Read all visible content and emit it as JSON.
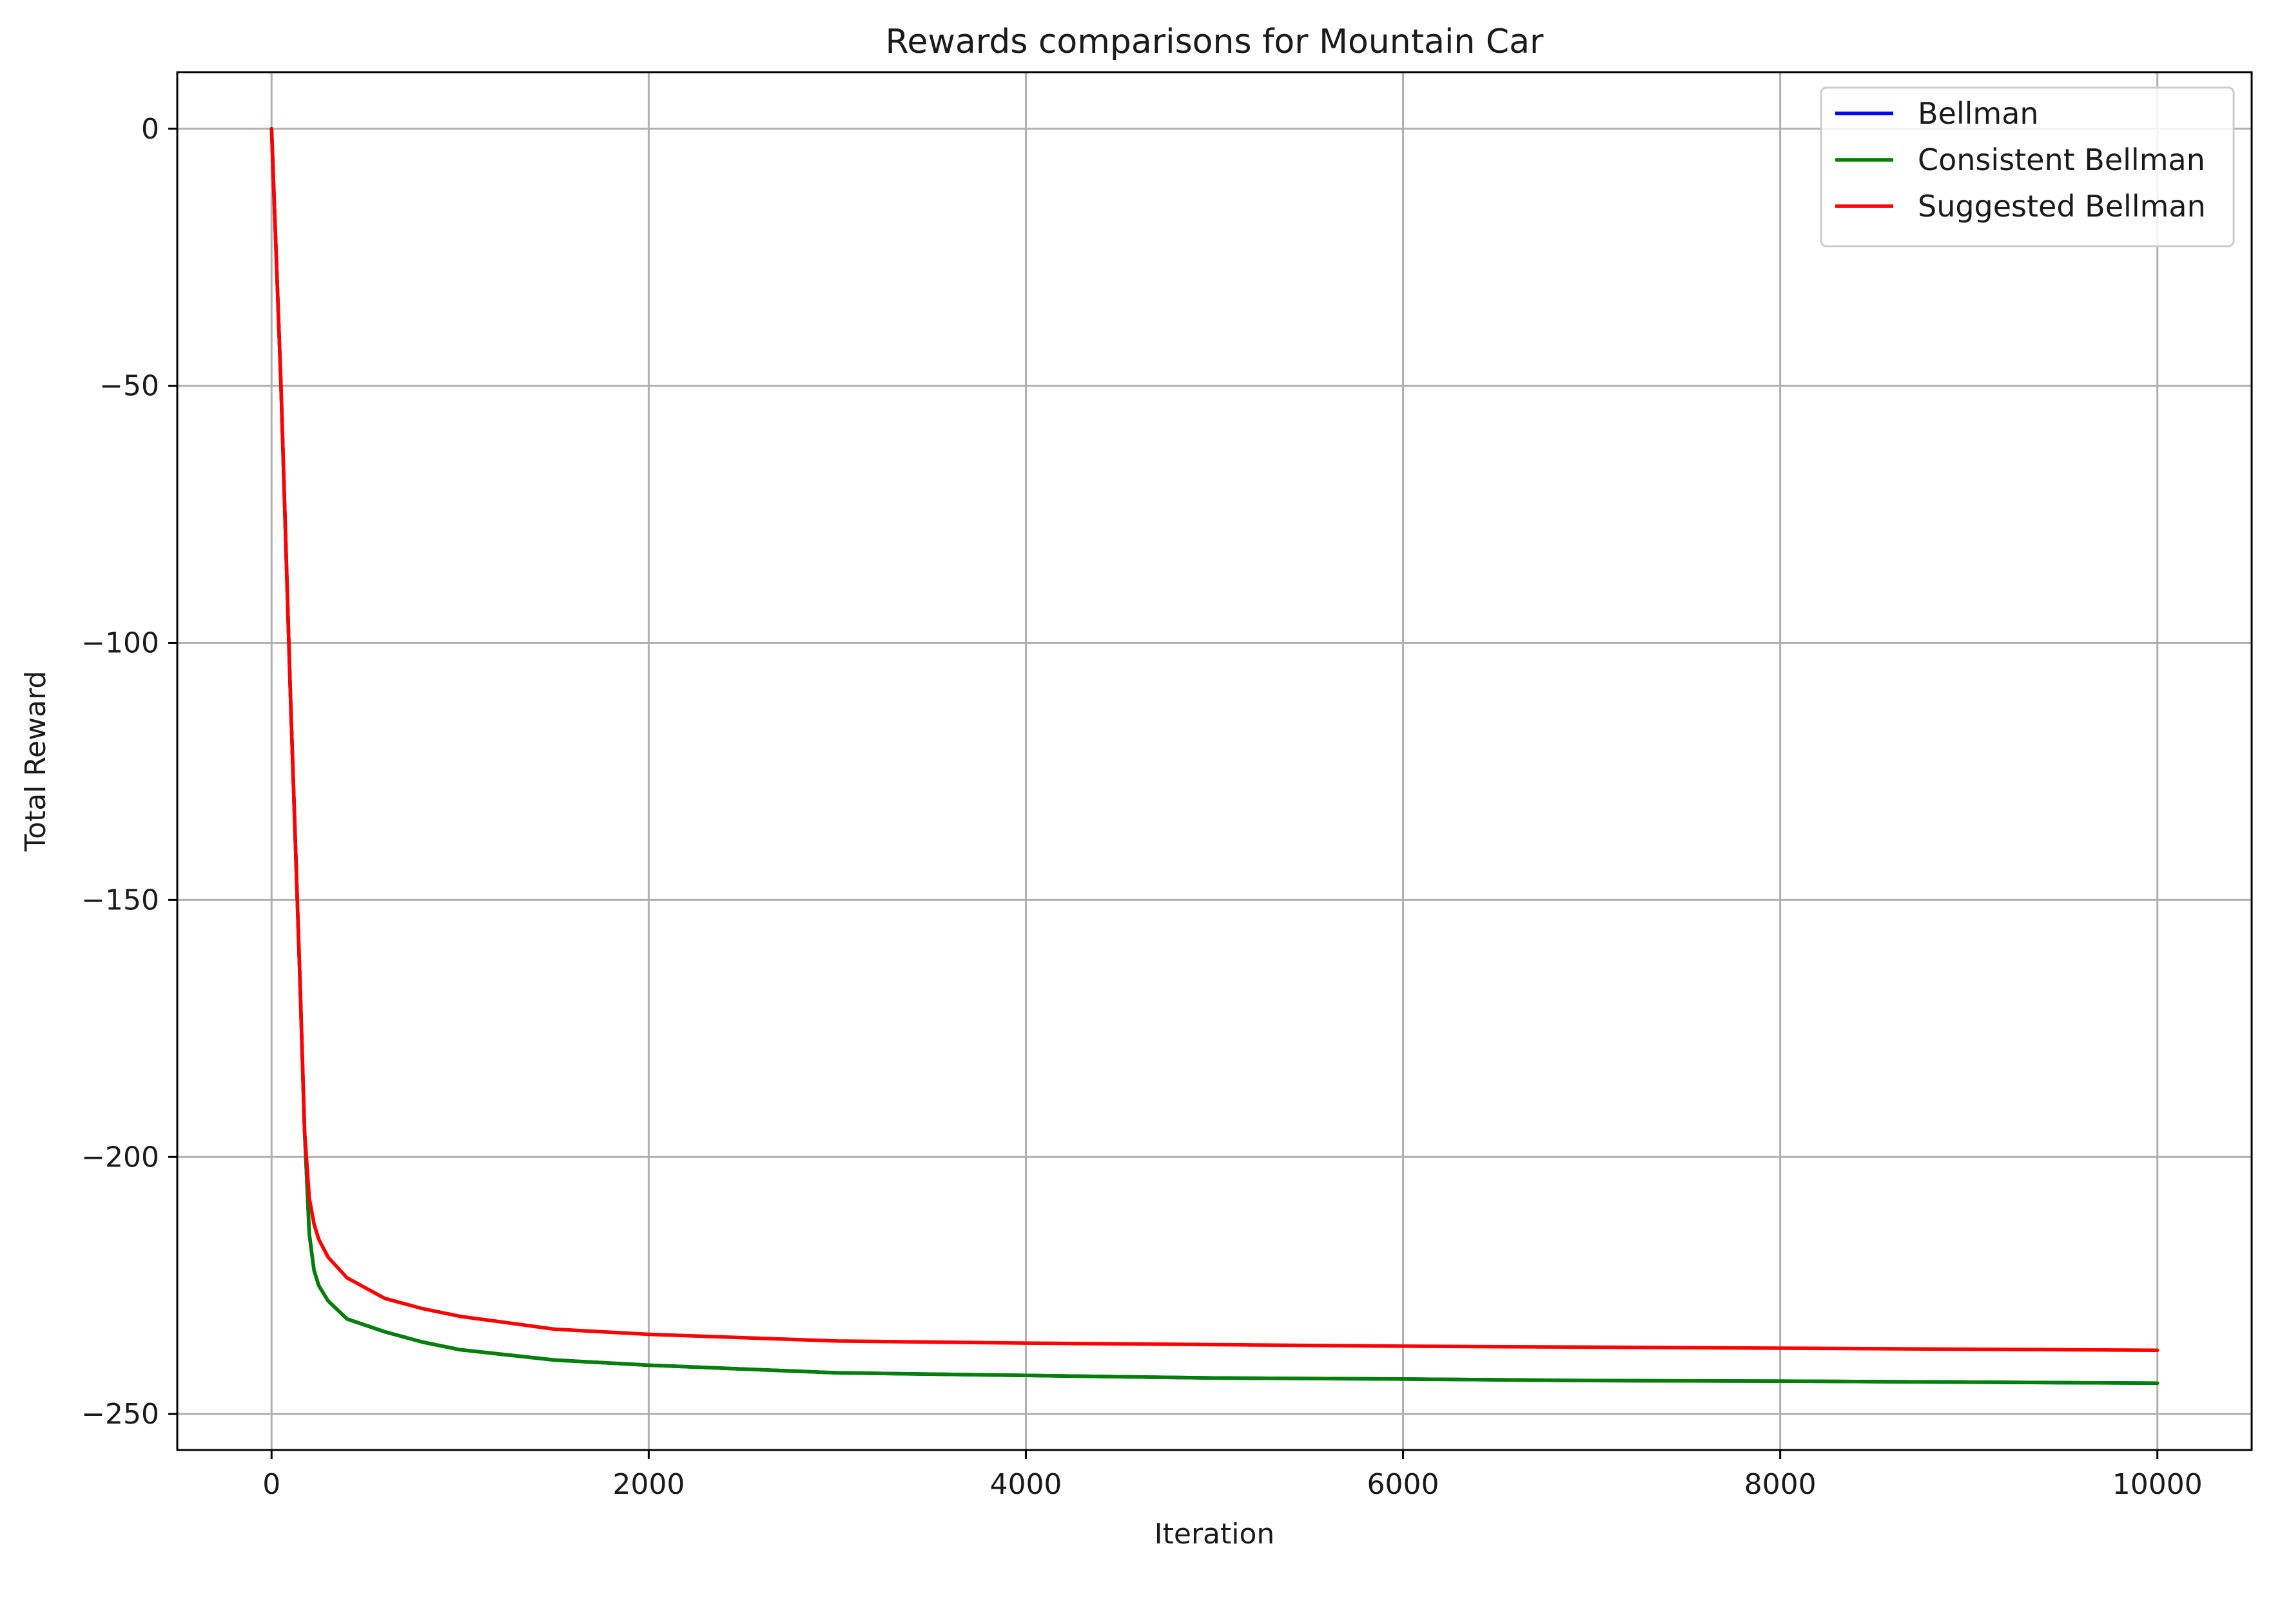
{
  "chart_data": {
    "type": "line",
    "title": "Rewards comparisons for Mountain Car",
    "xlabel": "Iteration",
    "ylabel": "Total Reward",
    "xlim": [
      -500,
      10500
    ],
    "ylim": [
      -257,
      11
    ],
    "x_ticks": [
      0,
      2000,
      4000,
      6000,
      8000,
      10000
    ],
    "x_tick_labels": [
      "0",
      "2000",
      "4000",
      "6000",
      "8000",
      "10000"
    ],
    "y_ticks": [
      0,
      -50,
      -100,
      -150,
      -200,
      -250
    ],
    "y_tick_labels": [
      "0",
      "−50",
      "−100",
      "−150",
      "−200",
      "−250"
    ],
    "grid": true,
    "legend_position": "top-right",
    "series": [
      {
        "name": "Bellman",
        "color": "#0000ff",
        "x": [
          0,
          50,
          100,
          150,
          175,
          200,
          225,
          250,
          300,
          400,
          600,
          800,
          1000,
          1500,
          2000,
          3000,
          4000,
          5000,
          6000,
          7000,
          8000,
          9000,
          10000
        ],
        "y": [
          0,
          -50,
          -110,
          -165,
          -195,
          -215,
          -222,
          -225,
          -228,
          -231.5,
          -234,
          -236,
          -237.5,
          -239.5,
          -240.5,
          -242,
          -242.5,
          -243,
          -243.2,
          -243.5,
          -243.6,
          -243.8,
          -244
        ]
      },
      {
        "name": "Consistent Bellman",
        "color": "#008000",
        "x": [
          0,
          50,
          100,
          150,
          175,
          200,
          225,
          250,
          300,
          400,
          600,
          800,
          1000,
          1500,
          2000,
          3000,
          4000,
          5000,
          6000,
          7000,
          8000,
          9000,
          10000
        ],
        "y": [
          0,
          -50,
          -110,
          -165,
          -195,
          -215,
          -222,
          -225,
          -228,
          -231.5,
          -234,
          -236,
          -237.5,
          -239.5,
          -240.5,
          -242,
          -242.5,
          -243,
          -243.2,
          -243.5,
          -243.6,
          -243.8,
          -244
        ]
      },
      {
        "name": "Suggested Bellman",
        "color": "#ff0000",
        "x": [
          0,
          50,
          100,
          150,
          175,
          200,
          225,
          250,
          300,
          400,
          600,
          800,
          1000,
          1500,
          2000,
          3000,
          4000,
          5000,
          6000,
          7000,
          8000,
          9000,
          10000
        ],
        "y": [
          0,
          -50,
          -110,
          -165,
          -195,
          -208,
          -213,
          -216,
          -219.5,
          -223.5,
          -227.5,
          -229.5,
          -231,
          -233.5,
          -234.5,
          -235.8,
          -236.2,
          -236.5,
          -236.8,
          -237,
          -237.2,
          -237.4,
          -237.6
        ]
      }
    ]
  }
}
